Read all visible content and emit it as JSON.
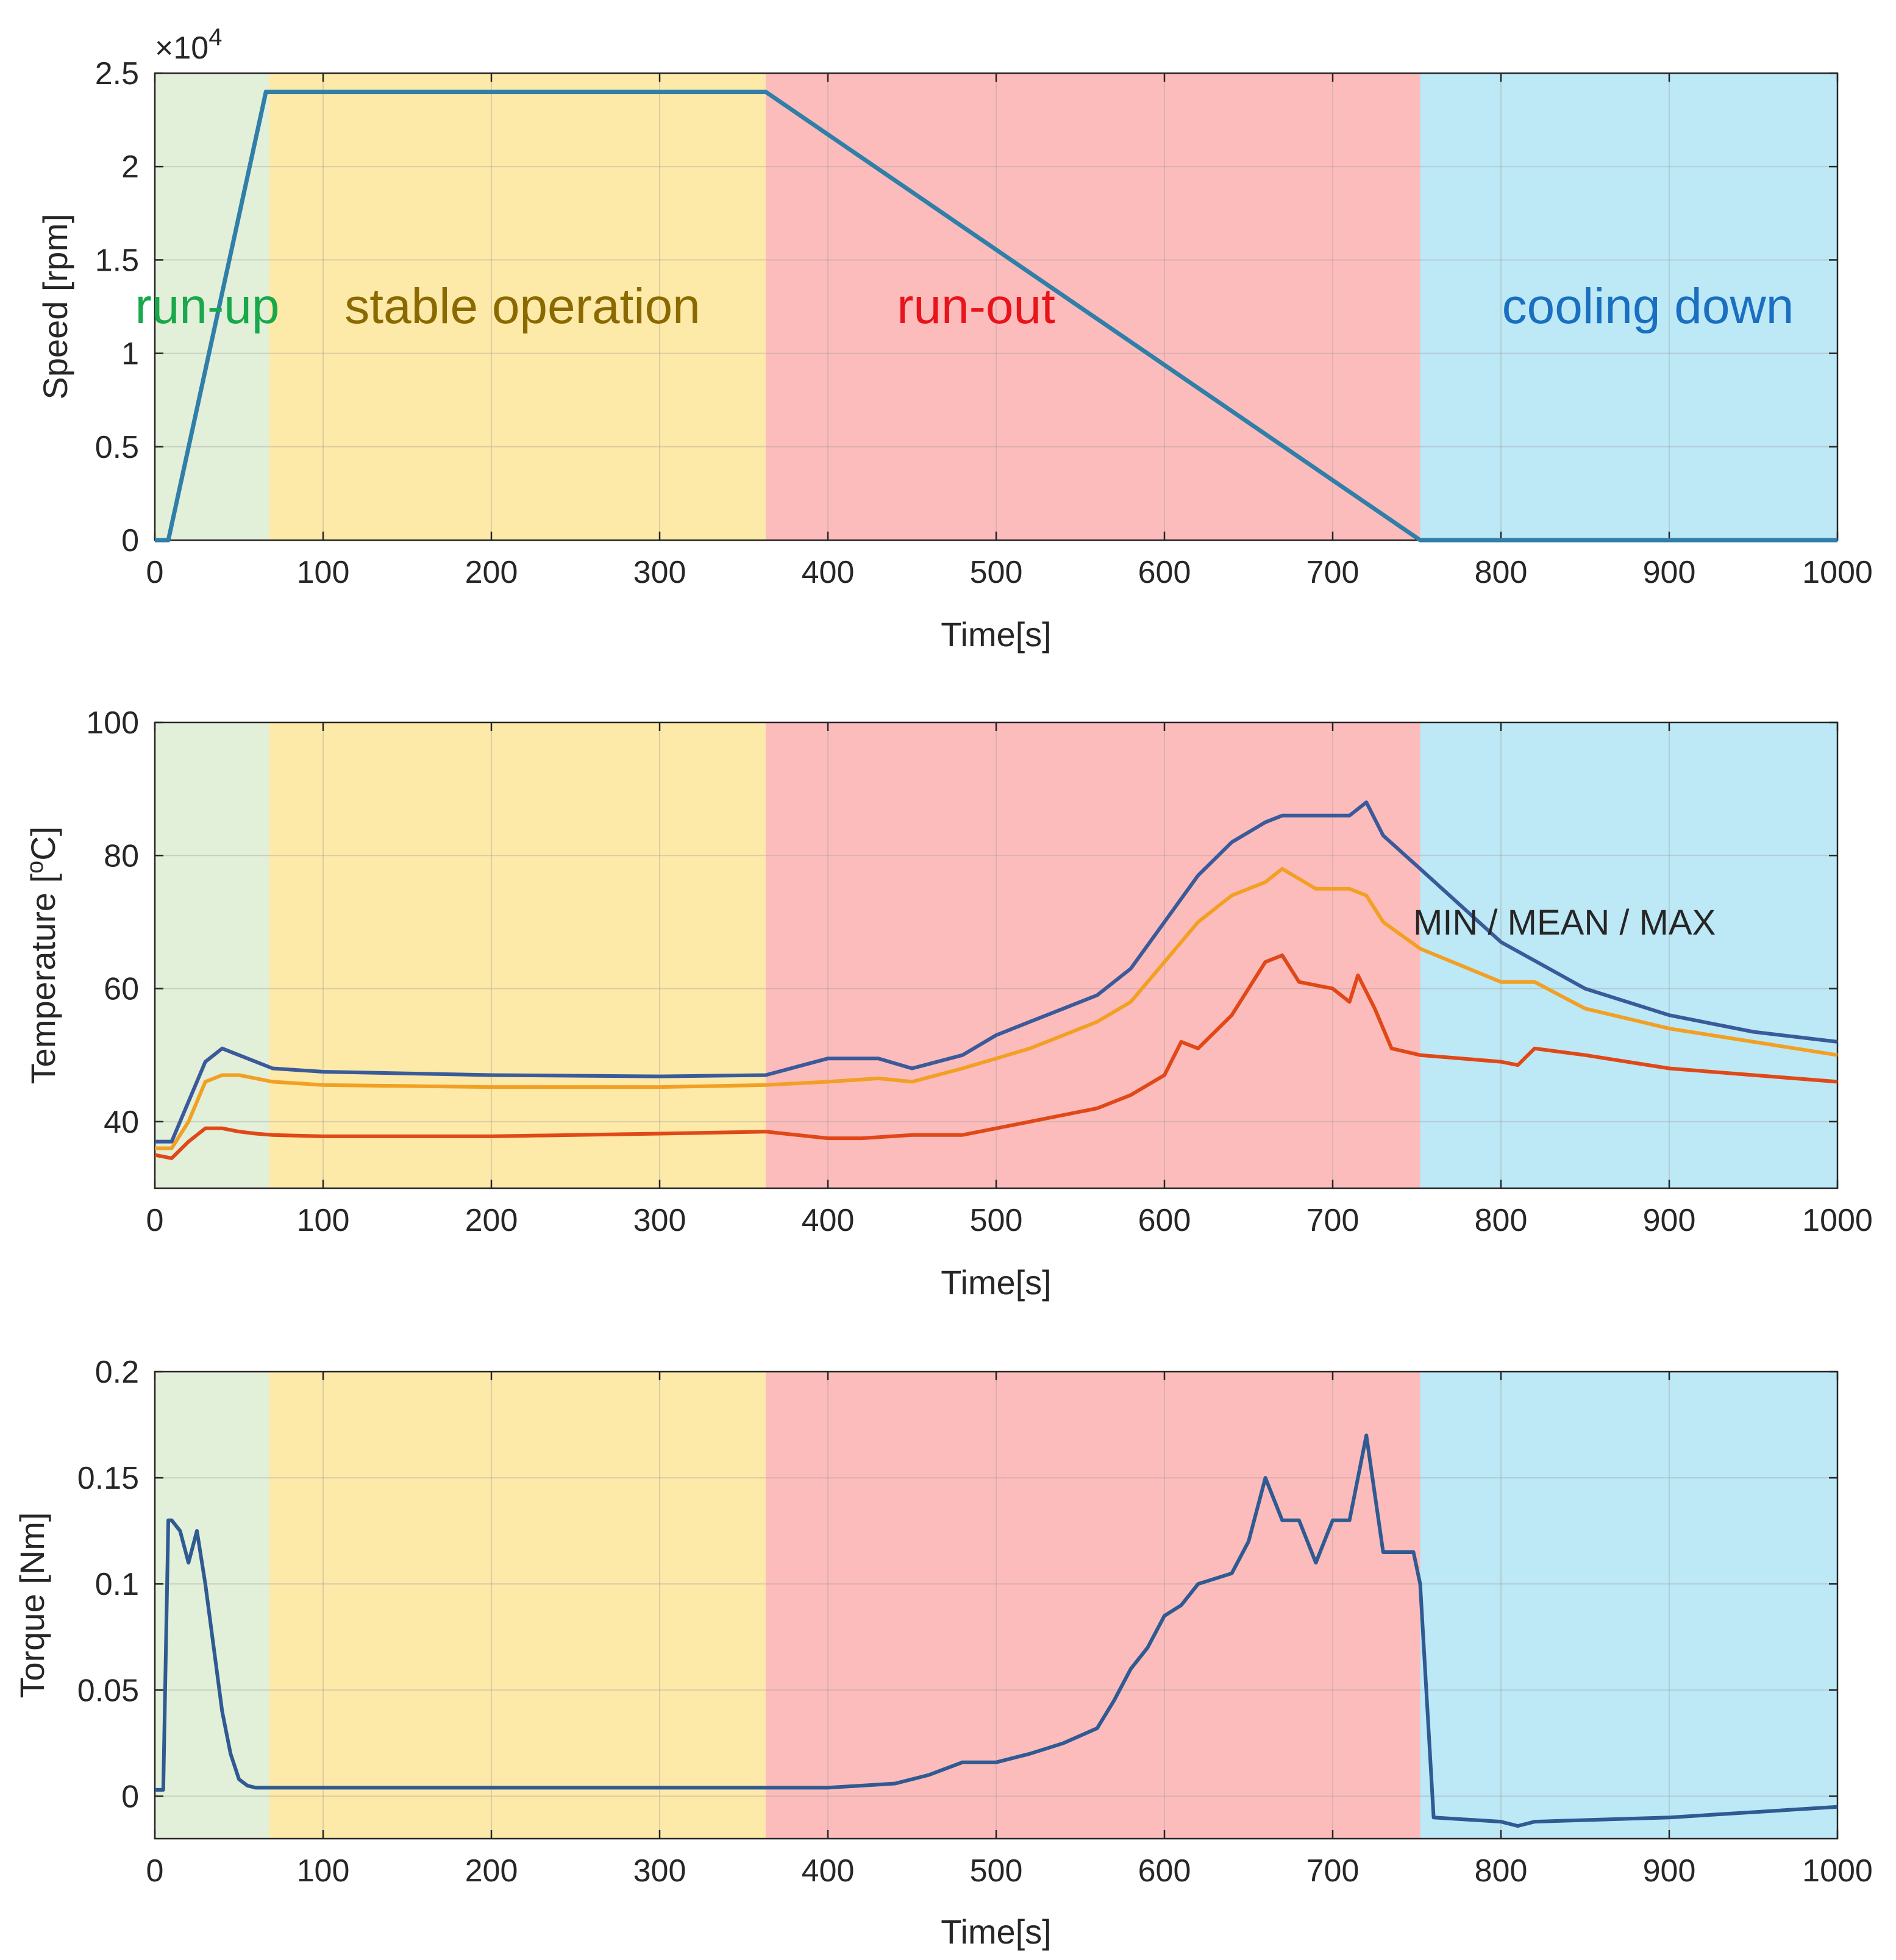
{
  "colors": {
    "run_up_bg": "#e2efd9",
    "stable_bg": "#fde9a8",
    "run_out_bg": "#fdbcbc",
    "cooling_bg": "#bde8f6",
    "speed_line": "#2f7fa8",
    "temp_max": "#3a5a9a",
    "temp_mean": "#f2a024",
    "temp_min": "#e04818",
    "torque_line": "#2f5a92",
    "run_up_text": "#19a84b",
    "stable_text": "#8a6a00",
    "run_out_text": "#e8141c",
    "cooling_text": "#1a6fc0"
  },
  "chart_data": [
    {
      "type": "line",
      "id": "speed",
      "title": "",
      "xlabel": "Time[s]",
      "ylabel": "Speed [rpm]",
      "xlim": [
        0,
        1000
      ],
      "ylim": [
        0,
        25000
      ],
      "x_ticks": [
        "0",
        "100",
        "200",
        "300",
        "400",
        "500",
        "600",
        "700",
        "800",
        "900",
        "1000"
      ],
      "y_ticks": [
        "0",
        "0.5",
        "1",
        "1.5",
        "2",
        "2.5"
      ],
      "y_exponent": "×10",
      "y_exponent_power": "4",
      "grid": true,
      "phases": [
        {
          "name": "run-up",
          "start": 0,
          "end": 68
        },
        {
          "name": "stable operation",
          "start": 68,
          "end": 363
        },
        {
          "name": "run-out",
          "start": 363,
          "end": 752
        },
        {
          "name": "cooling down",
          "start": 752,
          "end": 1000
        }
      ],
      "series": [
        {
          "name": "Speed",
          "x": [
            0,
            8,
            66,
            70,
            363,
            752,
            1000
          ],
          "values": [
            0,
            0,
            24000,
            24000,
            24000,
            0,
            0
          ]
        }
      ]
    },
    {
      "type": "line",
      "id": "temperature",
      "title": "",
      "xlabel": "Time[s]",
      "ylabel": "Temperature [oC]",
      "ylabel_parts": {
        "prefix": "Temperature [",
        "sup": "o",
        "suffix": "C]"
      },
      "xlim": [
        0,
        1000
      ],
      "ylim": [
        30,
        100
      ],
      "x_ticks": [
        "0",
        "100",
        "200",
        "300",
        "400",
        "500",
        "600",
        "700",
        "800",
        "900",
        "1000"
      ],
      "y_ticks": [
        "40",
        "60",
        "80",
        "100"
      ],
      "grid": true,
      "annotation": "MIN / MEAN / MAX",
      "series": [
        {
          "name": "MAX",
          "x": [
            0,
            10,
            20,
            30,
            40,
            50,
            60,
            70,
            100,
            200,
            300,
            363,
            400,
            430,
            450,
            480,
            500,
            520,
            540,
            560,
            580,
            600,
            620,
            640,
            660,
            670,
            690,
            710,
            720,
            730,
            752,
            800,
            850,
            900,
            950,
            1000
          ],
          "values": [
            37,
            37,
            43,
            49,
            51,
            50,
            49,
            48,
            47.5,
            47,
            46.8,
            47,
            49.5,
            49.5,
            48,
            50,
            53,
            55,
            57,
            59,
            63,
            70,
            77,
            82,
            85,
            86,
            86,
            86,
            88,
            83,
            78,
            67,
            60,
            56,
            53.5,
            52
          ]
        },
        {
          "name": "MEAN",
          "x": [
            0,
            10,
            20,
            30,
            40,
            50,
            60,
            70,
            100,
            200,
            300,
            363,
            400,
            430,
            450,
            480,
            500,
            520,
            540,
            560,
            580,
            600,
            620,
            640,
            660,
            670,
            690,
            710,
            720,
            730,
            752,
            800,
            820,
            850,
            900,
            950,
            1000
          ],
          "values": [
            36,
            36,
            40,
            46,
            47,
            47,
            46.5,
            46,
            45.5,
            45.2,
            45.2,
            45.5,
            46,
            46.5,
            46,
            48,
            49.5,
            51,
            53,
            55,
            58,
            64,
            70,
            74,
            76,
            78,
            75,
            75,
            74,
            70,
            66,
            61,
            61,
            57,
            54,
            52,
            50
          ]
        },
        {
          "name": "MIN",
          "x": [
            0,
            10,
            20,
            30,
            40,
            50,
            60,
            70,
            100,
            200,
            300,
            363,
            400,
            420,
            450,
            480,
            500,
            520,
            540,
            560,
            580,
            600,
            610,
            620,
            640,
            660,
            670,
            680,
            700,
            710,
            715,
            725,
            735,
            752,
            800,
            810,
            820,
            850,
            900,
            950,
            1000
          ],
          "values": [
            35,
            34.5,
            37,
            39,
            39,
            38.5,
            38.2,
            38,
            37.8,
            37.8,
            38.2,
            38.5,
            37.5,
            37.5,
            38,
            38,
            39,
            40,
            41,
            42,
            44,
            47,
            52,
            51,
            56,
            64,
            65,
            61,
            60,
            58,
            62,
            57,
            51,
            50,
            49,
            48.5,
            51,
            50,
            48,
            47,
            46
          ]
        }
      ]
    },
    {
      "type": "line",
      "id": "torque",
      "title": "",
      "xlabel": "Time[s]",
      "ylabel": "Torque [Nm]",
      "xlim": [
        0,
        1000
      ],
      "ylim": [
        -0.02,
        0.2
      ],
      "x_ticks": [
        "0",
        "100",
        "200",
        "300",
        "400",
        "500",
        "600",
        "700",
        "800",
        "900",
        "1000"
      ],
      "y_ticks": [
        "0",
        "0.05",
        "0.1",
        "0.15",
        "0.2"
      ],
      "grid": true,
      "series": [
        {
          "name": "Torque",
          "x": [
            0,
            5,
            8,
            10,
            15,
            20,
            25,
            30,
            35,
            40,
            45,
            50,
            55,
            60,
            70,
            100,
            200,
            300,
            363,
            400,
            440,
            460,
            480,
            500,
            520,
            540,
            560,
            570,
            580,
            590,
            600,
            610,
            620,
            640,
            650,
            660,
            670,
            680,
            690,
            700,
            710,
            720,
            730,
            740,
            748,
            752,
            760,
            800,
            810,
            820,
            900,
            1000
          ],
          "values": [
            0.003,
            0.003,
            0.13,
            0.13,
            0.125,
            0.11,
            0.125,
            0.1,
            0.07,
            0.04,
            0.02,
            0.008,
            0.005,
            0.004,
            0.004,
            0.004,
            0.004,
            0.004,
            0.004,
            0.004,
            0.006,
            0.01,
            0.016,
            0.016,
            0.02,
            0.025,
            0.032,
            0.045,
            0.06,
            0.07,
            0.085,
            0.09,
            0.1,
            0.105,
            0.12,
            0.15,
            0.13,
            0.13,
            0.11,
            0.13,
            0.13,
            0.17,
            0.115,
            0.115,
            0.115,
            0.1,
            -0.01,
            -0.012,
            -0.014,
            -0.012,
            -0.01,
            -0.005
          ]
        }
      ]
    }
  ]
}
